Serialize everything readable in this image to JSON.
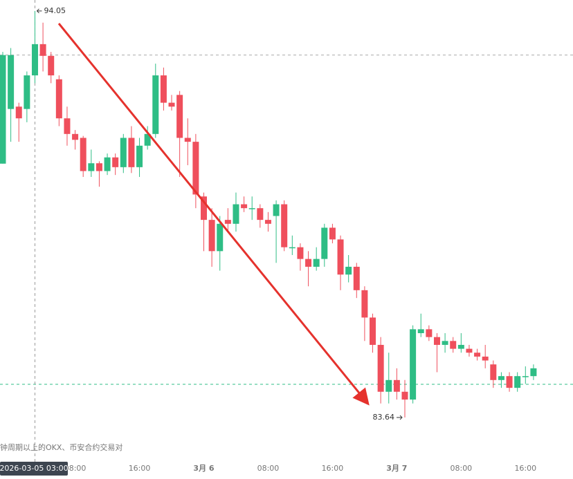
{
  "chart_data": {
    "type": "candlestick",
    "categories": [
      null,
      null,
      null,
      null,
      null,
      null,
      null,
      null,
      null,
      "08:00",
      null,
      null,
      null,
      null,
      null,
      null,
      null,
      "16:00",
      null,
      null,
      null,
      null,
      null,
      null,
      null,
      "3月 6",
      null,
      null,
      null,
      null,
      null,
      null,
      null,
      "08:00",
      null,
      null,
      null,
      null,
      null,
      null,
      null,
      "16:00",
      null,
      null,
      null,
      null,
      null,
      null,
      null,
      "3月 7",
      null,
      null,
      null,
      null,
      null,
      null,
      null,
      "08:00",
      null,
      null,
      null,
      null,
      null,
      null,
      null,
      "16:00",
      null
    ],
    "open": [
      90.14,
      91.54,
      91.6,
      91.54,
      92.4,
      93.2,
      92.9,
      92.3,
      91.3,
      90.9,
      90.8,
      89.95,
      90.15,
      89.95,
      90.3,
      90.05,
      90.8,
      90.05,
      90.6,
      90.9,
      92.4,
      91.7,
      91.9,
      90.8,
      90.7,
      89.3,
      88.7,
      87.9,
      88.7,
      88.6,
      89.1,
      89.0,
      89.0,
      88.7,
      88.8,
      89.1,
      88.0,
      88.0,
      87.7,
      87.5,
      87.7,
      88.5,
      88.2,
      87.3,
      87.5,
      86.9,
      86.2,
      85.5,
      84.3,
      84.6,
      84.3,
      84.1,
      85.8,
      85.9,
      85.7,
      85.5,
      85.6,
      85.4,
      85.4,
      85.3,
      85.2,
      85.0,
      84.6,
      84.7,
      84.4,
      84.7,
      84.7
    ],
    "high": [
      93.0,
      93.1,
      91.7,
      92.5,
      94.05,
      93.75,
      93.0,
      92.4,
      91.6,
      91.0,
      90.85,
      90.5,
      90.2,
      90.4,
      90.4,
      90.9,
      91.1,
      90.8,
      91.1,
      92.7,
      92.6,
      91.9,
      92.0,
      91.3,
      90.9,
      89.4,
      89.0,
      88.8,
      89.0,
      89.4,
      89.3,
      89.3,
      89.1,
      88.9,
      89.2,
      89.2,
      88.3,
      88.1,
      87.9,
      88.0,
      88.6,
      88.6,
      88.3,
      87.8,
      87.6,
      87.0,
      86.3,
      85.7,
      85.3,
      84.9,
      84.6,
      86.0,
      86.3,
      86.0,
      85.8,
      85.8,
      85.7,
      85.8,
      85.5,
      85.4,
      85.5,
      85.1,
      84.8,
      84.8,
      84.8,
      84.95,
      85.0
    ],
    "low": [
      90.14,
      90.7,
      90.7,
      91.2,
      92.2,
      92.5,
      92.2,
      91.1,
      90.6,
      90.5,
      89.8,
      89.8,
      89.55,
      89.85,
      89.85,
      89.9,
      89.9,
      89.8,
      90.5,
      90.8,
      91.5,
      91.5,
      89.8,
      90.1,
      89.0,
      87.9,
      87.5,
      87.4,
      88.4,
      88.4,
      88.9,
      88.7,
      88.5,
      88.4,
      87.6,
      87.9,
      87.8,
      87.4,
      87.0,
      87.4,
      87.5,
      88.1,
      86.9,
      87.1,
      86.7,
      85.6,
      85.3,
      84.0,
      84.0,
      84.1,
      83.64,
      84.0,
      85.7,
      85.6,
      84.8,
      85.3,
      85.3,
      85.3,
      85.2,
      85.1,
      84.9,
      84.4,
      84.4,
      84.3,
      84.3,
      84.5,
      84.6
    ],
    "close": [
      92.92,
      92.92,
      91.3,
      92.4,
      93.2,
      92.9,
      92.4,
      91.3,
      90.9,
      90.75,
      89.95,
      90.15,
      89.95,
      90.3,
      90.05,
      90.8,
      90.05,
      90.6,
      90.9,
      92.4,
      91.7,
      91.6,
      90.8,
      90.7,
      89.35,
      88.7,
      87.9,
      88.6,
      88.6,
      89.1,
      89.0,
      89.0,
      88.7,
      88.6,
      89.1,
      88.0,
      88.0,
      87.7,
      87.5,
      87.7,
      88.5,
      88.2,
      87.3,
      87.5,
      86.9,
      86.2,
      85.5,
      84.3,
      84.6,
      84.3,
      84.1,
      85.9,
      85.9,
      85.7,
      85.5,
      85.6,
      85.4,
      85.5,
      85.3,
      85.2,
      85.1,
      84.6,
      84.7,
      84.4,
      84.7,
      84.7,
      84.9
    ],
    "up_color": "#2ebd85",
    "down_color": "#ef4f5c",
    "ylim": [
      82.65,
      94.33
    ],
    "reference_lines": [
      {
        "value": 92.92,
        "color": "#aaaaaa"
      },
      {
        "value": 84.49,
        "color": "#2ebd85"
      }
    ],
    "crosshair_label": "2026-03-05 03:00",
    "watermark": "钟周期以上的OKX、币安合约交易对"
  }
}
